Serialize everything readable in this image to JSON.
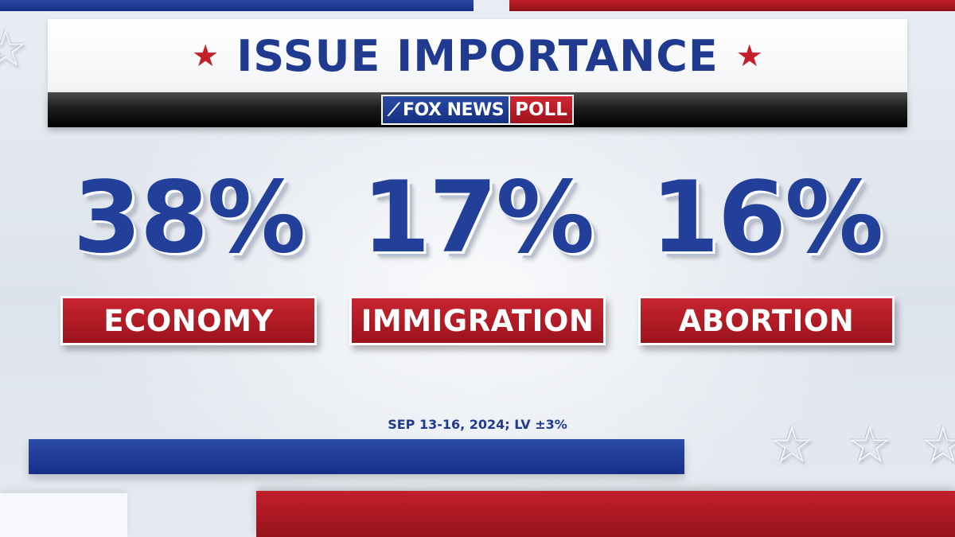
{
  "title": "ISSUE IMPORTANCE",
  "brand": {
    "name": "FOX NEWS",
    "tag": "POLL"
  },
  "stats": [
    {
      "value": "38%",
      "label": "ECONOMY"
    },
    {
      "value": "17%",
      "label": "IMMIGRATION"
    },
    {
      "value": "16%",
      "label": "ABORTION"
    }
  ],
  "footnote": "SEP 13-16, 2024; LV ±3%",
  "icons": {
    "title_star": "★",
    "deco_star": "☆",
    "fox_mark": "⟋"
  },
  "colors": {
    "navy": "#1f3a8f",
    "red": "#c4202b",
    "background": "#e6eaf0"
  }
}
